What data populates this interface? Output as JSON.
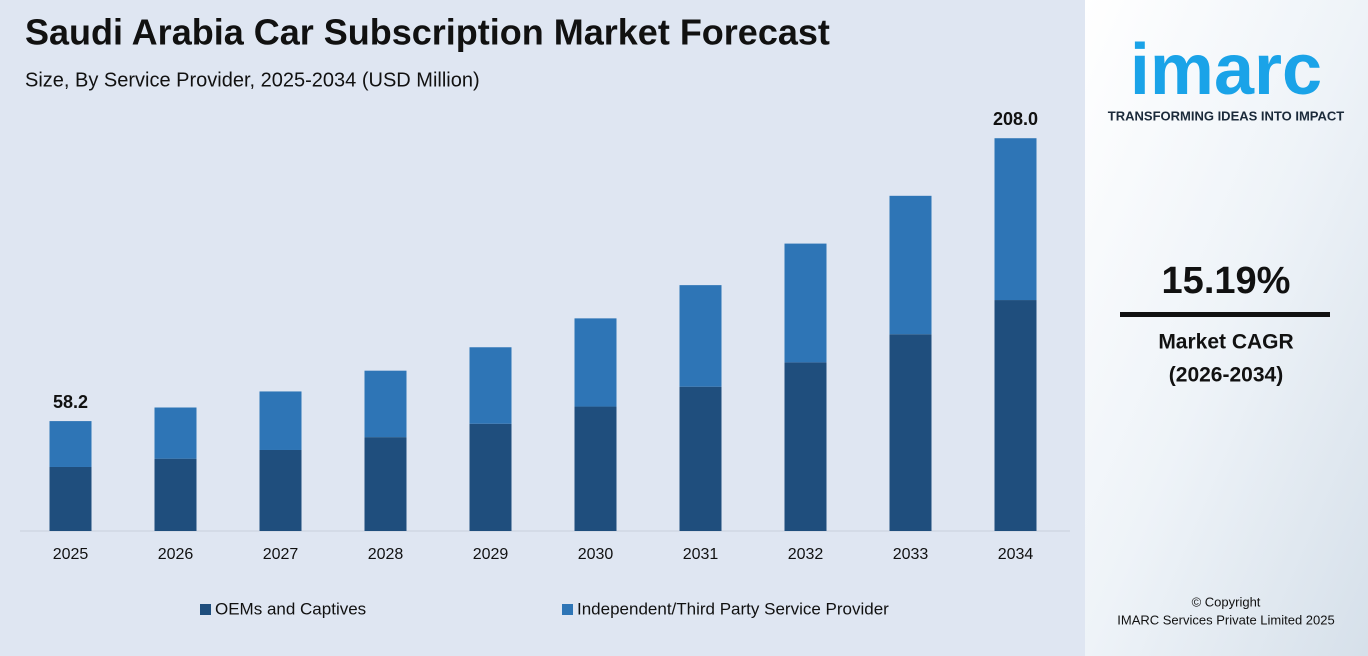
{
  "chart_data": {
    "type": "stacked-bar",
    "title": "Saudi Arabia Car Subscription Market Forecast",
    "subtitle": "Size, By Service Provider, 2025-2034 (USD Million)",
    "categories": [
      "2025",
      "2026",
      "2027",
      "2028",
      "2029",
      "2030",
      "2031",
      "2032",
      "2033",
      "2034"
    ],
    "series": [
      {
        "name": "OEMs and Captives",
        "color": "#1f4e7d",
        "values": [
          33.9,
          38.3,
          42.9,
          49.7,
          56.8,
          65.9,
          76.4,
          89.3,
          104.2,
          122.3
        ]
      },
      {
        "name": "Independent/Third Party Service Provider",
        "color": "#2e75b6",
        "values": [
          24.3,
          27.1,
          31.0,
          35.2,
          40.5,
          46.7,
          53.8,
          62.9,
          73.3,
          85.7
        ]
      }
    ],
    "totals": [
      58.2,
      null,
      null,
      null,
      null,
      null,
      null,
      null,
      null,
      208
    ],
    "total_labels": [
      "58.2",
      null,
      null,
      null,
      null,
      null,
      null,
      null,
      null,
      "208.0"
    ],
    "ylim": [
      0,
      215
    ],
    "grid": false,
    "legend": "bottom"
  },
  "sidebar": {
    "logo": "imarc",
    "tagline": "TRANSFORMING IDEAS INTO IMPACT",
    "cagr": "15.19%",
    "cagr_label": "Market CAGR",
    "cagr_period": "(2026-2034)",
    "copyright": "© Copyright",
    "copyright_holder": "IMARC Services Private Limited 2025"
  }
}
